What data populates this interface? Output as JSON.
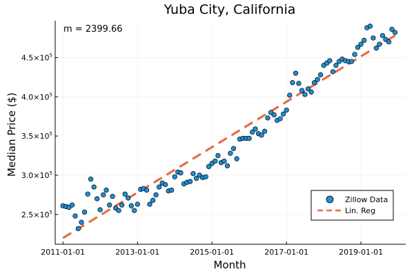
{
  "chart_data": {
    "type": "scatter",
    "title": "Yuba City, California",
    "xlabel": "Month",
    "ylabel": "Median Price ($)",
    "annotation": "m = 2399.66",
    "grid": true,
    "legend_position": "bottom-right",
    "xlim": [
      "2010-10-17",
      "2020-03-15"
    ],
    "ylim": [
      212000,
      497000
    ],
    "x_ticks": [
      "2011-01-01",
      "2013-01-01",
      "2015-01-01",
      "2017-01-01",
      "2019-01-01"
    ],
    "y_ticks": [
      {
        "value": 250000,
        "mantissa": "2.5",
        "exp": "5"
      },
      {
        "value": 300000,
        "mantissa": "3.0",
        "exp": "5"
      },
      {
        "value": 350000,
        "mantissa": "3.5",
        "exp": "5"
      },
      {
        "value": 400000,
        "mantissa": "4.0",
        "exp": "5"
      },
      {
        "value": 450000,
        "mantissa": "4.5",
        "exp": "5"
      }
    ],
    "y_tick_base": "×10",
    "series": [
      {
        "name": "Zillow Data",
        "kind": "scatter",
        "color": "#1f8fd6",
        "x": [
          "2011-01-01",
          "2011-02-01",
          "2011-03-01",
          "2011-04-01",
          "2011-05-01",
          "2011-06-01",
          "2011-07-01",
          "2011-08-01",
          "2011-09-01",
          "2011-10-01",
          "2011-11-01",
          "2011-12-01",
          "2012-01-01",
          "2012-02-01",
          "2012-03-01",
          "2012-04-01",
          "2012-05-01",
          "2012-06-01",
          "2012-07-01",
          "2012-08-01",
          "2012-09-01",
          "2012-10-01",
          "2012-11-01",
          "2012-12-01",
          "2013-01-01",
          "2013-02-01",
          "2013-03-01",
          "2013-04-01",
          "2013-05-01",
          "2013-06-01",
          "2013-07-01",
          "2013-08-01",
          "2013-09-01",
          "2013-10-01",
          "2013-11-01",
          "2013-12-01",
          "2014-01-01",
          "2014-02-01",
          "2014-03-01",
          "2014-04-01",
          "2014-05-01",
          "2014-06-01",
          "2014-07-01",
          "2014-08-01",
          "2014-09-01",
          "2014-10-01",
          "2014-11-01",
          "2014-12-01",
          "2015-01-01",
          "2015-02-01",
          "2015-03-01",
          "2015-04-01",
          "2015-05-01",
          "2015-06-01",
          "2015-07-01",
          "2015-08-01",
          "2015-09-01",
          "2015-10-01",
          "2015-11-01",
          "2015-12-01",
          "2016-01-01",
          "2016-02-01",
          "2016-03-01",
          "2016-04-01",
          "2016-05-01",
          "2016-06-01",
          "2016-07-01",
          "2016-08-01",
          "2016-09-01",
          "2016-10-01",
          "2016-11-01",
          "2016-12-01",
          "2017-01-01",
          "2017-02-01",
          "2017-03-01",
          "2017-04-01",
          "2017-05-01",
          "2017-06-01",
          "2017-07-01",
          "2017-08-01",
          "2017-09-01",
          "2017-10-01",
          "2017-11-01",
          "2017-12-01",
          "2018-01-01",
          "2018-02-01",
          "2018-03-01",
          "2018-04-01",
          "2018-05-01",
          "2018-06-01",
          "2018-07-01",
          "2018-08-01",
          "2018-09-01",
          "2018-10-01",
          "2018-11-01",
          "2018-12-01",
          "2019-01-01",
          "2019-02-01",
          "2019-03-01",
          "2019-04-01",
          "2019-05-01",
          "2019-06-01",
          "2019-07-01",
          "2019-08-01",
          "2019-09-01",
          "2019-10-01",
          "2019-11-01",
          "2019-12-01"
        ],
        "y": [
          261000,
          260000,
          259000,
          262000,
          248000,
          232000,
          240000,
          253000,
          276000,
          295000,
          285000,
          270000,
          256000,
          275000,
          281000,
          262000,
          273000,
          258000,
          255000,
          262000,
          276000,
          271000,
          261000,
          255000,
          263000,
          282000,
          283000,
          281000,
          263000,
          268000,
          275000,
          285000,
          290000,
          288000,
          280000,
          281000,
          298000,
          304000,
          303000,
          289000,
          291000,
          292000,
          302000,
          296000,
          300000,
          297000,
          298000,
          311000,
          315000,
          318000,
          325000,
          316000,
          318000,
          312000,
          328000,
          334000,
          321000,
          346000,
          347000,
          347000,
          347000,
          355000,
          359000,
          353000,
          351000,
          356000,
          373000,
          380000,
          377000,
          370000,
          372000,
          378000,
          383000,
          402000,
          418000,
          430000,
          417000,
          408000,
          403000,
          410000,
          406000,
          418000,
          422000,
          428000,
          440000,
          443000,
          446000,
          432000,
          440000,
          445000,
          448000,
          446000,
          445000,
          445000,
          454000,
          463000,
          467000,
          472000,
          488000,
          490000,
          475000,
          462000,
          467000,
          478000,
          473000,
          470000,
          486000,
          482000
        ]
      },
      {
        "name": "Lin. Reg",
        "kind": "line",
        "color": "#e26f46",
        "x": [
          "2011-01-01",
          "2019-12-01"
        ],
        "y": [
          220000,
          478000
        ]
      }
    ]
  }
}
